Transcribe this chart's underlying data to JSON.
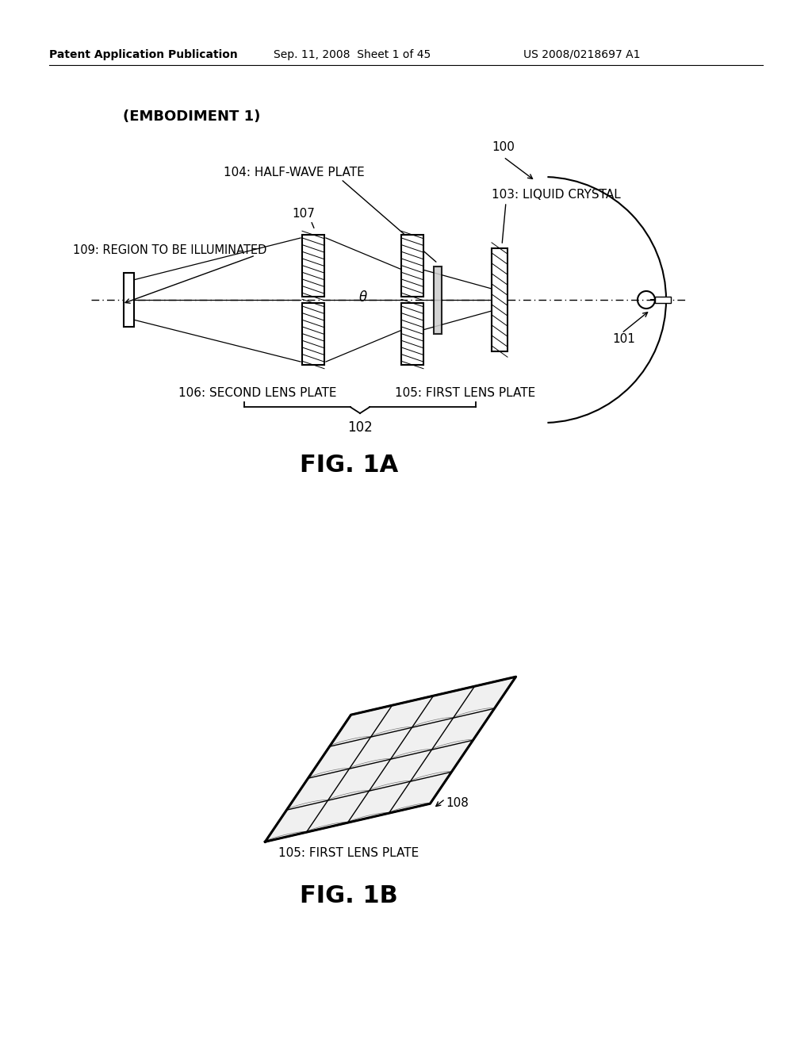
{
  "bg_color": "#ffffff",
  "text_color": "#000000",
  "header_left": "Patent Application Publication",
  "header_mid": "Sep. 11, 2008  Sheet 1 of 45",
  "header_right": "US 2008/0218697 A1",
  "embodiment_label": "(EMBODIMENT 1)",
  "fig1a_label": "FIG. 1A",
  "fig1b_label": "FIG. 1B",
  "label_100": "100",
  "label_101": "101",
  "label_102": "102",
  "label_103": "103: LIQUID CRYSTAL",
  "label_104": "104: HALF-WAVE PLATE",
  "label_105": "105: FIRST LENS PLATE",
  "label_106": "106: SECOND LENS PLATE",
  "label_107": "107",
  "label_108": "108",
  "label_109": "109: REGION TO BE ILLUMINATED",
  "label_theta": "θ"
}
